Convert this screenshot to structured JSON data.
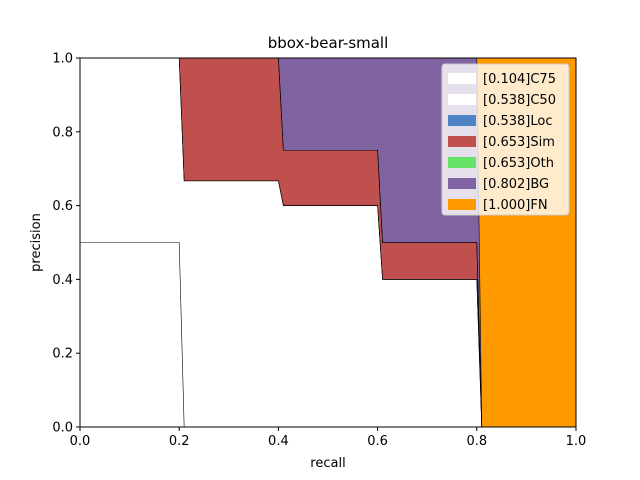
{
  "chart_data": {
    "type": "area",
    "title": "bbox-bear-small",
    "xlabel": "recall",
    "ylabel": "precision",
    "xlim": [
      0,
      1
    ],
    "ylim": [
      0,
      1
    ],
    "xticks": [
      "0.0",
      "0.2",
      "0.4",
      "0.6",
      "0.8",
      "1.0"
    ],
    "yticks": [
      "0.0",
      "0.2",
      "0.4",
      "0.6",
      "0.8",
      "1.0"
    ],
    "grid": false,
    "legend_position": "top-right",
    "series": [
      {
        "name": "[0.104]C75",
        "color": "#ffffff",
        "points": [
          [
            0,
            0.5
          ],
          [
            0.2,
            0.5
          ],
          [
            0.21,
            0
          ],
          [
            1,
            0
          ]
        ]
      },
      {
        "name": "[0.538]C50",
        "color": "#ffffff",
        "points": [
          [
            0,
            1
          ],
          [
            0.2,
            1
          ],
          [
            0.21,
            0.667
          ],
          [
            0.4,
            0.667
          ],
          [
            0.41,
            0.6
          ],
          [
            0.6,
            0.6
          ],
          [
            0.61,
            0.4
          ],
          [
            0.8,
            0.4
          ],
          [
            0.81,
            0
          ],
          [
            1,
            0
          ]
        ]
      },
      {
        "name": "[0.538]Loc",
        "color": "#4c84c4",
        "points": [
          [
            0,
            1
          ],
          [
            0.2,
            1
          ],
          [
            0.21,
            0.667
          ],
          [
            0.4,
            0.667
          ],
          [
            0.41,
            0.6
          ],
          [
            0.6,
            0.6
          ],
          [
            0.61,
            0.4
          ],
          [
            0.8,
            0.4
          ],
          [
            0.81,
            0
          ],
          [
            1,
            0
          ]
        ]
      },
      {
        "name": "[0.653]Sim",
        "color": "#c0504d",
        "points": [
          [
            0,
            1
          ],
          [
            0.4,
            1
          ],
          [
            0.41,
            0.75
          ],
          [
            0.6,
            0.75
          ],
          [
            0.61,
            0.5
          ],
          [
            0.8,
            0.5
          ],
          [
            0.81,
            0
          ],
          [
            1,
            0
          ]
        ]
      },
      {
        "name": "[0.653]Oth",
        "color": "#66e366",
        "points": [
          [
            0,
            1
          ],
          [
            0.4,
            1
          ],
          [
            0.41,
            0.75
          ],
          [
            0.6,
            0.75
          ],
          [
            0.61,
            0.5
          ],
          [
            0.8,
            0.5
          ],
          [
            0.81,
            0
          ],
          [
            1,
            0
          ]
        ]
      },
      {
        "name": "[0.802]BG",
        "color": "#8064a2",
        "points": [
          [
            0,
            1
          ],
          [
            0.8,
            1
          ],
          [
            0.81,
            0
          ],
          [
            1,
            0
          ]
        ]
      },
      {
        "name": "[1.000]FN",
        "color": "#ff9900",
        "points": [
          [
            0,
            1
          ],
          [
            1,
            1
          ]
        ]
      }
    ]
  }
}
